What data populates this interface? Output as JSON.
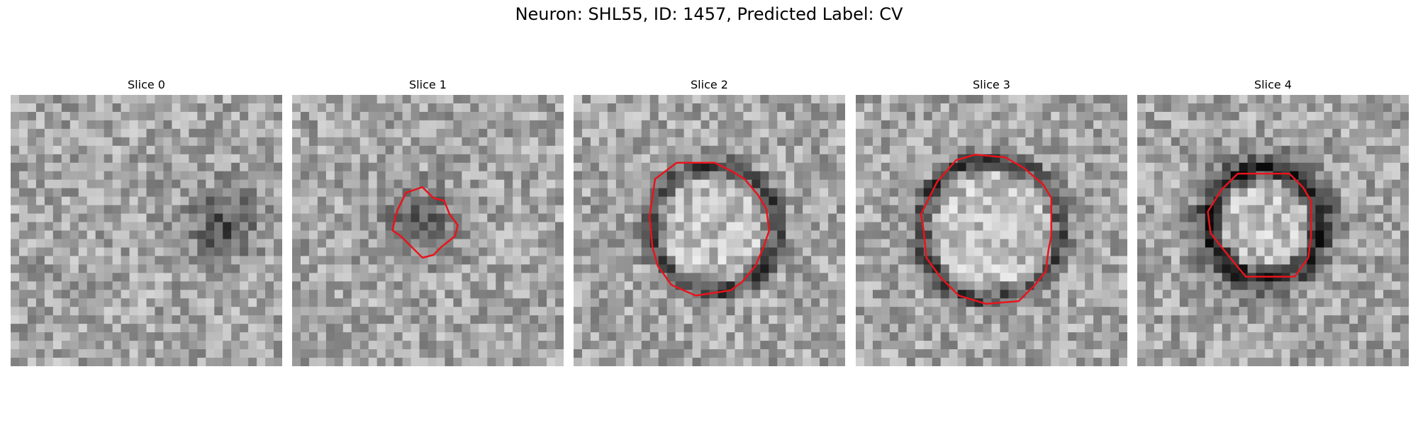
{
  "figure": {
    "title": "Neuron: SHL55, ID: 1457, Predicted Label: CV"
  },
  "colors": {
    "outline": "#e8141c"
  },
  "panels": [
    {
      "title": "Slice 0",
      "blob": "dark",
      "outline": []
    },
    {
      "title": "Slice 1",
      "blob": "dark",
      "outline": [
        [
          0.39,
          0.42
        ],
        [
          0.42,
          0.36
        ],
        [
          0.48,
          0.34
        ],
        [
          0.52,
          0.38
        ],
        [
          0.56,
          0.39
        ],
        [
          0.58,
          0.44
        ],
        [
          0.61,
          0.48
        ],
        [
          0.6,
          0.52
        ],
        [
          0.55,
          0.56
        ],
        [
          0.52,
          0.59
        ],
        [
          0.48,
          0.6
        ],
        [
          0.44,
          0.56
        ],
        [
          0.4,
          0.52
        ],
        [
          0.37,
          0.5
        ],
        [
          0.38,
          0.45
        ]
      ]
    },
    {
      "title": "Slice 2",
      "blob": "ring",
      "outline": [
        [
          0.3,
          0.31
        ],
        [
          0.38,
          0.25
        ],
        [
          0.52,
          0.25
        ],
        [
          0.58,
          0.28
        ],
        [
          0.63,
          0.31
        ],
        [
          0.68,
          0.37
        ],
        [
          0.71,
          0.42
        ],
        [
          0.72,
          0.5
        ],
        [
          0.7,
          0.56
        ],
        [
          0.67,
          0.63
        ],
        [
          0.62,
          0.69
        ],
        [
          0.58,
          0.72
        ],
        [
          0.45,
          0.74
        ],
        [
          0.36,
          0.7
        ],
        [
          0.31,
          0.63
        ],
        [
          0.29,
          0.56
        ],
        [
          0.28,
          0.45
        ]
      ]
    },
    {
      "title": "Slice 3",
      "blob": "ring",
      "outline": [
        [
          0.3,
          0.32
        ],
        [
          0.37,
          0.24
        ],
        [
          0.44,
          0.22
        ],
        [
          0.55,
          0.23
        ],
        [
          0.62,
          0.27
        ],
        [
          0.69,
          0.33
        ],
        [
          0.72,
          0.38
        ],
        [
          0.72,
          0.52
        ],
        [
          0.71,
          0.57
        ],
        [
          0.7,
          0.65
        ],
        [
          0.66,
          0.7
        ],
        [
          0.6,
          0.76
        ],
        [
          0.48,
          0.77
        ],
        [
          0.38,
          0.74
        ],
        [
          0.31,
          0.67
        ],
        [
          0.26,
          0.6
        ],
        [
          0.25,
          0.5
        ],
        [
          0.24,
          0.44
        ]
      ]
    },
    {
      "title": "Slice 4",
      "blob": "ring-small",
      "outline": [
        [
          0.31,
          0.35
        ],
        [
          0.37,
          0.29
        ],
        [
          0.46,
          0.29
        ],
        [
          0.56,
          0.29
        ],
        [
          0.61,
          0.34
        ],
        [
          0.64,
          0.39
        ],
        [
          0.64,
          0.52
        ],
        [
          0.63,
          0.6
        ],
        [
          0.58,
          0.67
        ],
        [
          0.5,
          0.67
        ],
        [
          0.4,
          0.67
        ],
        [
          0.35,
          0.61
        ],
        [
          0.27,
          0.51
        ],
        [
          0.26,
          0.43
        ]
      ]
    }
  ]
}
